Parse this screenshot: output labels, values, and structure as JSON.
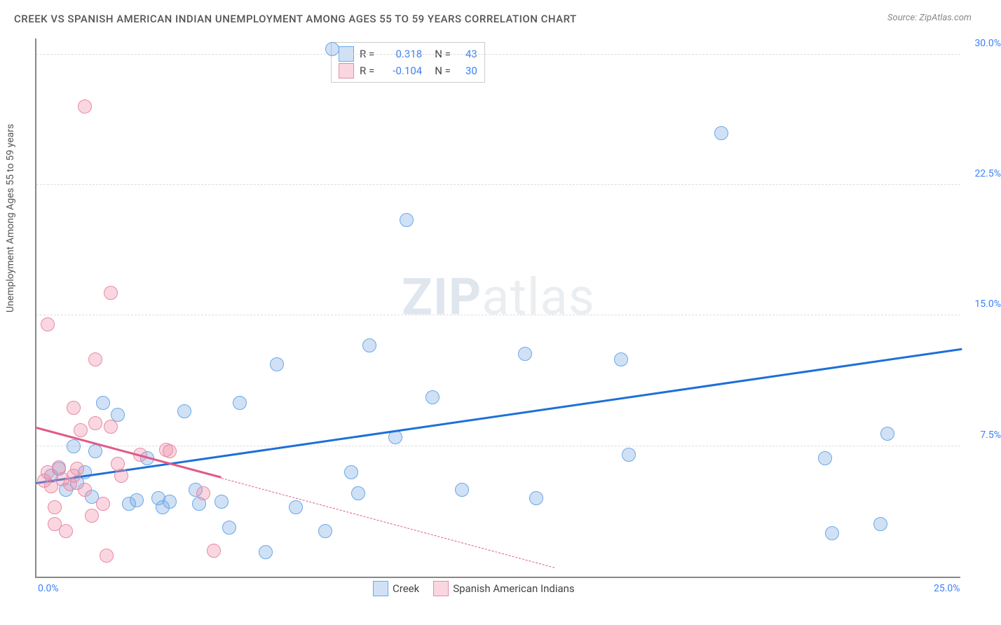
{
  "title": "CREEK VS SPANISH AMERICAN INDIAN UNEMPLOYMENT AMONG AGES 55 TO 59 YEARS CORRELATION CHART",
  "source": "Source: ZipAtlas.com",
  "y_axis_label": "Unemployment Among Ages 55 to 59 years",
  "watermark_bold": "ZIP",
  "watermark_light": "atlas",
  "chart": {
    "type": "scatter",
    "background_color": "#ffffff",
    "grid_color": "#dddddd",
    "axis_color": "#888888",
    "tick_color": "#3b82f6",
    "xlim": [
      0,
      25
    ],
    "ylim": [
      0,
      31
    ],
    "yticks": [
      7.5,
      15.0,
      22.5,
      30.0
    ],
    "ytick_labels": [
      "7.5%",
      "15.0%",
      "22.5%",
      "30.0%"
    ],
    "xtick_min": {
      "value": 0,
      "label": "0.0%"
    },
    "xtick_max": {
      "value": 25,
      "label": "25.0%"
    },
    "point_radius": 10
  },
  "series": [
    {
      "name": "Creek",
      "fill": "rgba(120,170,230,0.35)",
      "stroke": "#6aa8e8",
      "line_color": "#1e6fd9",
      "r": "0.318",
      "n": "43",
      "trend": {
        "x1": 0,
        "y1": 5.3,
        "x2": 25,
        "y2": 13.0,
        "solid_until_x": 25
      },
      "points": [
        [
          0.4,
          5.8
        ],
        [
          0.6,
          6.2
        ],
        [
          0.8,
          5.0
        ],
        [
          1.0,
          7.5
        ],
        [
          1.1,
          5.4
        ],
        [
          1.3,
          6.0
        ],
        [
          1.5,
          4.6
        ],
        [
          1.6,
          7.2
        ],
        [
          1.8,
          10.0
        ],
        [
          2.2,
          9.3
        ],
        [
          2.5,
          4.2
        ],
        [
          2.7,
          4.4
        ],
        [
          3.0,
          6.8
        ],
        [
          3.3,
          4.5
        ],
        [
          3.4,
          4.0
        ],
        [
          3.6,
          4.3
        ],
        [
          4.0,
          9.5
        ],
        [
          4.3,
          5.0
        ],
        [
          4.4,
          4.2
        ],
        [
          5.0,
          4.3
        ],
        [
          5.2,
          2.8
        ],
        [
          5.5,
          10.0
        ],
        [
          6.2,
          1.4
        ],
        [
          6.5,
          12.2
        ],
        [
          7.0,
          4.0
        ],
        [
          7.8,
          2.6
        ],
        [
          8.0,
          30.3
        ],
        [
          8.5,
          6.0
        ],
        [
          8.7,
          4.8
        ],
        [
          9.0,
          13.3
        ],
        [
          9.7,
          8.0
        ],
        [
          10.0,
          20.5
        ],
        [
          10.7,
          10.3
        ],
        [
          11.5,
          5.0
        ],
        [
          13.5,
          4.5
        ],
        [
          13.2,
          12.8
        ],
        [
          15.8,
          12.5
        ],
        [
          16.0,
          7.0
        ],
        [
          18.5,
          25.5
        ],
        [
          21.3,
          6.8
        ],
        [
          21.5,
          2.5
        ],
        [
          23.0,
          8.2
        ],
        [
          22.8,
          3.0
        ]
      ]
    },
    {
      "name": "Spanish American Indians",
      "fill": "rgba(240,140,165,0.35)",
      "stroke": "#e88aa5",
      "line_color": "#e05a87",
      "r": "-0.104",
      "n": "30",
      "trend": {
        "x1": 0,
        "y1": 8.5,
        "x2": 14,
        "y2": 0.5,
        "solid_until_x": 5
      },
      "points": [
        [
          0.2,
          5.5
        ],
        [
          0.3,
          6.0
        ],
        [
          0.3,
          14.5
        ],
        [
          0.4,
          5.2
        ],
        [
          0.5,
          4.0
        ],
        [
          0.5,
          3.0
        ],
        [
          0.6,
          6.3
        ],
        [
          0.7,
          5.6
        ],
        [
          0.8,
          2.6
        ],
        [
          0.9,
          5.3
        ],
        [
          1.0,
          5.8
        ],
        [
          1.0,
          9.7
        ],
        [
          1.1,
          6.2
        ],
        [
          1.2,
          8.4
        ],
        [
          1.3,
          5.0
        ],
        [
          1.3,
          27.0
        ],
        [
          1.5,
          3.5
        ],
        [
          1.6,
          8.8
        ],
        [
          1.6,
          12.5
        ],
        [
          1.8,
          4.2
        ],
        [
          1.9,
          1.2
        ],
        [
          2.0,
          8.6
        ],
        [
          2.0,
          16.3
        ],
        [
          2.2,
          6.5
        ],
        [
          2.3,
          5.8
        ],
        [
          2.8,
          7.0
        ],
        [
          3.5,
          7.3
        ],
        [
          3.6,
          7.2
        ],
        [
          4.5,
          4.8
        ],
        [
          4.8,
          1.5
        ]
      ]
    }
  ],
  "legend_bottom": [
    {
      "label": "Creek",
      "fill": "rgba(120,170,230,0.35)",
      "stroke": "#6aa8e8"
    },
    {
      "label": "Spanish American Indians",
      "fill": "rgba(240,140,165,0.35)",
      "stroke": "#e88aa5"
    }
  ]
}
